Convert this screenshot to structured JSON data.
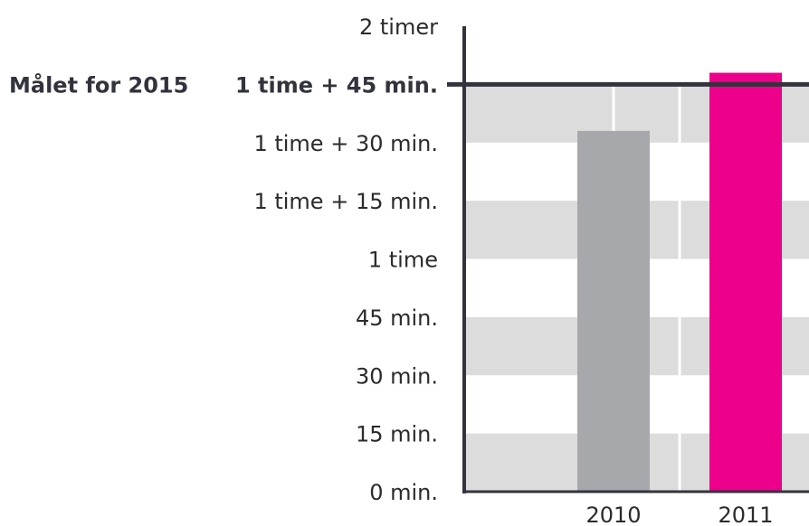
{
  "chart_data": {
    "type": "bar",
    "categories": [
      "2010",
      "2011"
    ],
    "values": [
      93,
      108
    ],
    "unit": "minutes",
    "ylim": [
      0,
      120
    ],
    "yticks": [
      {
        "value": 0,
        "label": "0 min."
      },
      {
        "value": 15,
        "label": "15 min."
      },
      {
        "value": 30,
        "label": "30 min."
      },
      {
        "value": 45,
        "label": "45 min."
      },
      {
        "value": 60,
        "label": "1 time"
      },
      {
        "value": 75,
        "label": "1 time + 15 min."
      },
      {
        "value": 90,
        "label": "1 time + 30 min."
      },
      {
        "value": 105,
        "label": "1 time + 45 min."
      },
      {
        "value": 120,
        "label": "2 timer"
      }
    ],
    "target": {
      "value": 105,
      "label": "Målet for 2015"
    },
    "grid": "alternating horizontal bands",
    "bar_colors": [
      "#a6a8ab",
      "#ec008c"
    ],
    "band_color": "#dcdcdc",
    "axis_color": "#33333d"
  }
}
